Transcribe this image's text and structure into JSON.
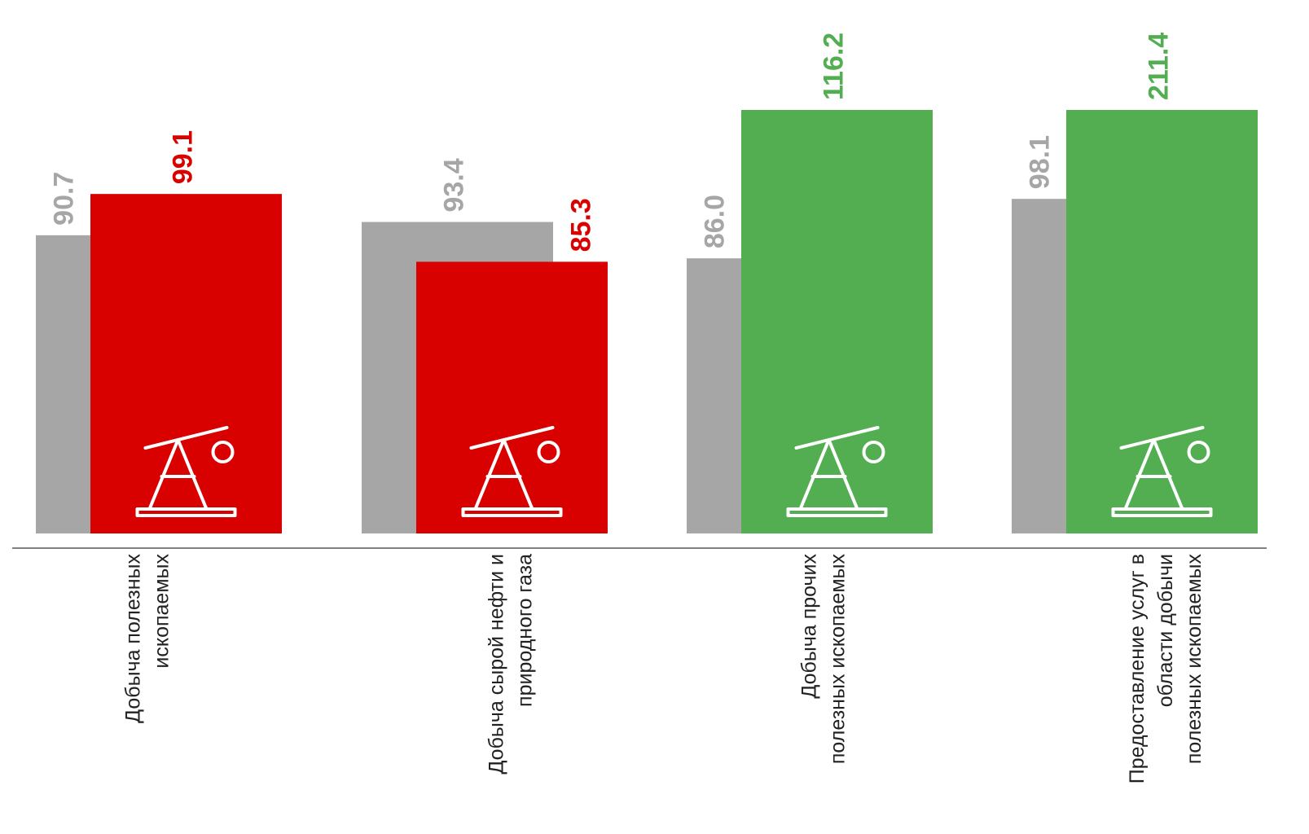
{
  "chart_data": {
    "type": "bar",
    "categories": [
      [
        "Добыча полезных",
        "ископаемых"
      ],
      [
        "Добыча сырой нефти и",
        "природного газа"
      ],
      [
        "Добыча прочих",
        "полезных ископаемых"
      ],
      [
        "Предоставление услуг в",
        "области добычи",
        "полезных ископаемых"
      ]
    ],
    "series": [
      {
        "color": "#a6a6a6",
        "values": [
          90.7,
          93.4,
          86.0,
          98.1
        ],
        "value_labels": [
          "90.7",
          "93.4",
          "86.0",
          "98.1"
        ]
      },
      {
        "colors": [
          "#d90000",
          "#d90000",
          "#52ae50",
          "#52ae50"
        ],
        "values": [
          99.1,
          85.3,
          116.2,
          211.4
        ],
        "value_labels": [
          "99.1",
          "85.3",
          "116.2",
          "211.4"
        ]
      }
    ],
    "ylim": [
      30,
      116.2
    ]
  }
}
